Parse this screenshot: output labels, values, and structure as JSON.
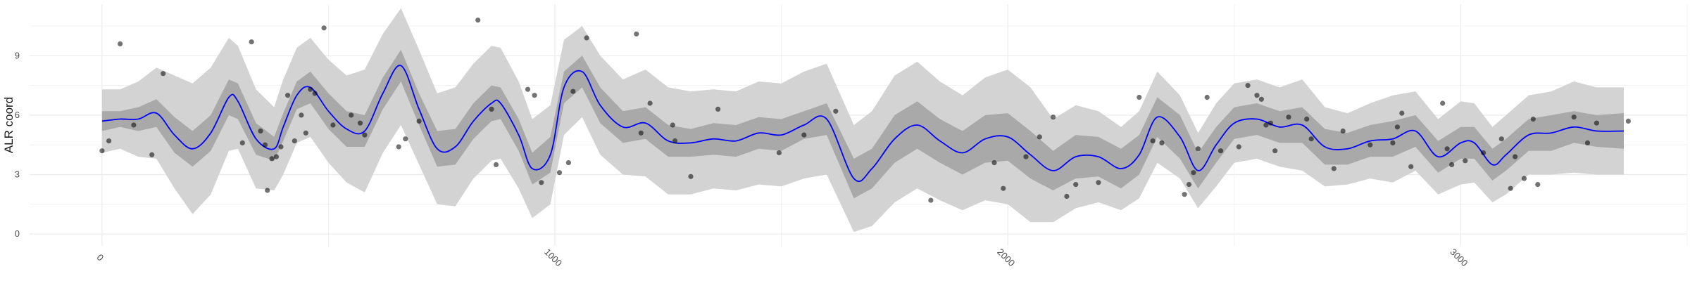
{
  "chart_data": {
    "type": "line",
    "title": "",
    "xlabel": "",
    "ylabel": "ALR coord",
    "xlim": [
      -160,
      3500
    ],
    "ylim": [
      -0.6,
      11.6
    ],
    "x_ticks": [
      0,
      1000,
      2000,
      3000
    ],
    "x_tick_labels": [
      "0",
      "1000",
      "2000",
      "3000"
    ],
    "y_ticks": [
      0,
      3,
      6,
      9
    ],
    "y_tick_labels": [
      "0",
      "3",
      "6",
      "9"
    ],
    "grid": true,
    "x_tick_rotation_deg": 45,
    "colors": {
      "mean_line": "#0000ff",
      "inner_band": "#a9a9a9",
      "outer_band": "#d3d3d3",
      "points": "#000000",
      "grid": "#ebebeb"
    },
    "series": [
      {
        "role": "mean",
        "x": [
          0,
          40,
          80,
          120,
          160,
          200,
          240,
          280,
          300,
          340,
          380,
          400,
          430,
          460,
          500,
          540,
          580,
          620,
          660,
          700,
          740,
          780,
          820,
          860,
          880,
          920,
          950,
          990,
          1020,
          1060,
          1100,
          1150,
          1200,
          1250,
          1300,
          1350,
          1400,
          1450,
          1500,
          1550,
          1600,
          1660,
          1700,
          1750,
          1800,
          1850,
          1900,
          1950,
          2000,
          2050,
          2100,
          2150,
          2200,
          2250,
          2290,
          2330,
          2380,
          2420,
          2460,
          2500,
          2550,
          2600,
          2650,
          2700,
          2750,
          2800,
          2850,
          2900,
          2950,
          3000,
          3030,
          3070,
          3100,
          3150,
          3200,
          3250,
          3300,
          3360
        ],
        "y": [
          5.7,
          5.8,
          5.8,
          6.1,
          5.0,
          4.3,
          5.1,
          6.9,
          6.7,
          4.8,
          4.3,
          5.4,
          7.0,
          7.4,
          6.2,
          5.3,
          5.2,
          7.1,
          8.5,
          6.3,
          4.3,
          4.4,
          5.7,
          6.6,
          6.6,
          5.0,
          3.3,
          4.0,
          7.4,
          8.2,
          6.5,
          5.4,
          5.6,
          4.7,
          4.6,
          4.8,
          4.7,
          5.1,
          5.0,
          5.5,
          5.8,
          2.8,
          3.3,
          4.8,
          5.5,
          4.7,
          4.1,
          4.8,
          4.9,
          4.0,
          3.2,
          3.9,
          3.9,
          3.3,
          4.0,
          5.9,
          4.9,
          3.2,
          4.5,
          5.6,
          5.8,
          5.4,
          5.5,
          4.4,
          4.3,
          4.7,
          4.8,
          5.2,
          3.9,
          4.6,
          4.6,
          3.5,
          4.0,
          5.0,
          5.1,
          5.4,
          5.2,
          5.2
        ]
      },
      {
        "role": "inner_band",
        "lower": [
          5.2,
          5.4,
          5.2,
          5.4,
          4.1,
          3.4,
          4.2,
          6.0,
          5.8,
          4.0,
          3.7,
          4.7,
          6.3,
          6.6,
          5.3,
          4.4,
          4.4,
          6.3,
          7.7,
          5.5,
          3.4,
          3.5,
          4.8,
          5.7,
          5.8,
          4.2,
          2.5,
          3.1,
          6.6,
          7.4,
          5.6,
          4.6,
          4.8,
          3.9,
          3.9,
          4.0,
          3.9,
          4.3,
          4.2,
          4.8,
          5.0,
          1.8,
          2.3,
          3.6,
          4.3,
          3.6,
          3.0,
          3.6,
          3.7,
          2.8,
          2.2,
          2.8,
          2.9,
          2.3,
          3.0,
          4.9,
          3.8,
          2.3,
          3.6,
          4.8,
          5.0,
          4.6,
          4.6,
          3.5,
          3.5,
          3.9,
          3.9,
          4.4,
          3.1,
          3.8,
          3.8,
          2.7,
          3.2,
          4.2,
          4.2,
          4.6,
          4.4,
          4.3
        ],
        "upper": [
          6.2,
          6.2,
          6.4,
          6.8,
          5.9,
          5.2,
          6.0,
          7.8,
          7.6,
          5.6,
          4.9,
          6.1,
          7.7,
          8.2,
          7.1,
          6.2,
          6.0,
          7.9,
          9.3,
          7.1,
          5.2,
          5.3,
          6.6,
          7.5,
          7.4,
          5.8,
          4.1,
          4.9,
          8.2,
          9.0,
          7.4,
          6.2,
          6.4,
          5.5,
          5.3,
          5.6,
          5.5,
          5.9,
          5.8,
          6.2,
          6.6,
          3.8,
          4.3,
          6.0,
          6.7,
          5.8,
          5.2,
          6.0,
          6.1,
          5.2,
          4.2,
          5.0,
          4.9,
          4.3,
          5.0,
          6.9,
          6.0,
          4.1,
          5.4,
          6.4,
          6.6,
          6.2,
          6.4,
          5.3,
          5.1,
          5.5,
          5.7,
          6.0,
          4.7,
          5.4,
          5.4,
          4.3,
          4.8,
          5.8,
          6.0,
          6.2,
          6.0,
          6.1
        ]
      },
      {
        "role": "outer_band",
        "lower": [
          4.1,
          4.3,
          3.9,
          3.8,
          2.3,
          1.0,
          2.0,
          4.2,
          4.3,
          2.3,
          2.2,
          3.0,
          4.6,
          4.9,
          3.6,
          2.6,
          2.1,
          4.1,
          5.5,
          3.5,
          1.5,
          1.4,
          2.8,
          3.7,
          3.8,
          2.3,
          0.8,
          1.5,
          5.0,
          5.9,
          4.0,
          3.0,
          2.9,
          2.0,
          2.0,
          2.3,
          2.2,
          2.5,
          2.4,
          2.8,
          3.0,
          0.1,
          0.4,
          1.6,
          2.3,
          1.7,
          1.2,
          1.7,
          1.5,
          0.6,
          0.6,
          1.3,
          1.6,
          1.2,
          1.8,
          3.6,
          2.8,
          1.3,
          2.4,
          3.6,
          3.8,
          3.4,
          3.2,
          2.4,
          2.5,
          2.8,
          2.6,
          3.2,
          2.0,
          2.5,
          2.6,
          1.6,
          2.0,
          3.0,
          3.0,
          3.1,
          3.0,
          3.0
        ],
        "upper": [
          7.3,
          7.3,
          7.7,
          8.4,
          8.0,
          7.6,
          8.4,
          9.9,
          9.5,
          7.3,
          6.4,
          7.8,
          9.4,
          9.9,
          8.8,
          8.0,
          8.3,
          10.1,
          11.4,
          9.3,
          7.1,
          7.4,
          8.6,
          9.5,
          9.4,
          7.7,
          5.8,
          6.5,
          9.8,
          10.5,
          9.0,
          7.8,
          8.3,
          7.4,
          7.2,
          7.3,
          7.2,
          7.7,
          7.6,
          8.2,
          8.6,
          5.5,
          6.2,
          8.0,
          8.7,
          7.7,
          7.0,
          7.9,
          8.3,
          7.4,
          5.8,
          6.5,
          6.2,
          5.4,
          6.2,
          8.2,
          7.0,
          5.1,
          6.6,
          7.6,
          7.8,
          7.4,
          7.8,
          6.4,
          6.1,
          6.6,
          7.0,
          7.2,
          5.8,
          6.7,
          6.6,
          5.4,
          6.0,
          7.0,
          7.2,
          7.7,
          7.4,
          7.4
        ]
      },
      {
        "role": "observations",
        "x": [
          0,
          15,
          40,
          70,
          110,
          135,
          310,
          330,
          350,
          360,
          365,
          375,
          385,
          395,
          410,
          425,
          440,
          450,
          460,
          470,
          490,
          510,
          550,
          570,
          580,
          655,
          670,
          700,
          830,
          860,
          870,
          940,
          955,
          970,
          1010,
          1030,
          1040,
          1070,
          1180,
          1190,
          1210,
          1260,
          1265,
          1300,
          1360,
          1495,
          1550,
          1620,
          1830,
          1970,
          1990,
          2040,
          2070,
          2100,
          2130,
          2150,
          2200,
          2290,
          2320,
          2340,
          2390,
          2400,
          2410,
          2420,
          2440,
          2470,
          2510,
          2530,
          2550,
          2560,
          2570,
          2580,
          2590,
          2620,
          2660,
          2670,
          2720,
          2740,
          2800,
          2850,
          2860,
          2870,
          2890,
          2960,
          2970,
          2980,
          3010,
          3050,
          3090,
          3110,
          3120,
          3140,
          3160,
          3170,
          3250,
          3280,
          3300,
          3370
        ],
        "y": [
          4.2,
          4.7,
          9.6,
          5.5,
          4.0,
          8.1,
          4.6,
          9.7,
          5.2,
          4.5,
          2.2,
          3.8,
          3.9,
          4.4,
          7.0,
          4.7,
          6.0,
          5.1,
          7.3,
          7.1,
          10.4,
          5.5,
          6.0,
          5.6,
          5.0,
          4.4,
          4.8,
          5.7,
          10.8,
          6.3,
          3.5,
          7.3,
          7.0,
          2.6,
          3.1,
          3.6,
          7.2,
          9.9,
          10.1,
          5.1,
          6.6,
          5.5,
          4.7,
          2.9,
          6.3,
          4.1,
          5.0,
          6.2,
          1.7,
          3.6,
          2.3,
          3.9,
          4.9,
          5.9,
          1.9,
          2.5,
          2.6,
          6.9,
          4.7,
          4.6,
          2.0,
          2.5,
          3.1,
          4.3,
          6.9,
          4.2,
          4.4,
          7.5,
          7.0,
          6.8,
          5.5,
          5.6,
          4.2,
          5.9,
          5.8,
          4.8,
          3.3,
          5.2,
          4.5,
          4.6,
          5.4,
          6.1,
          3.4,
          6.6,
          4.3,
          3.5,
          3.7,
          4.1,
          4.8,
          2.3,
          3.9,
          2.8,
          5.8,
          2.5,
          5.9,
          4.6,
          5.6,
          5.7
        ]
      }
    ]
  }
}
